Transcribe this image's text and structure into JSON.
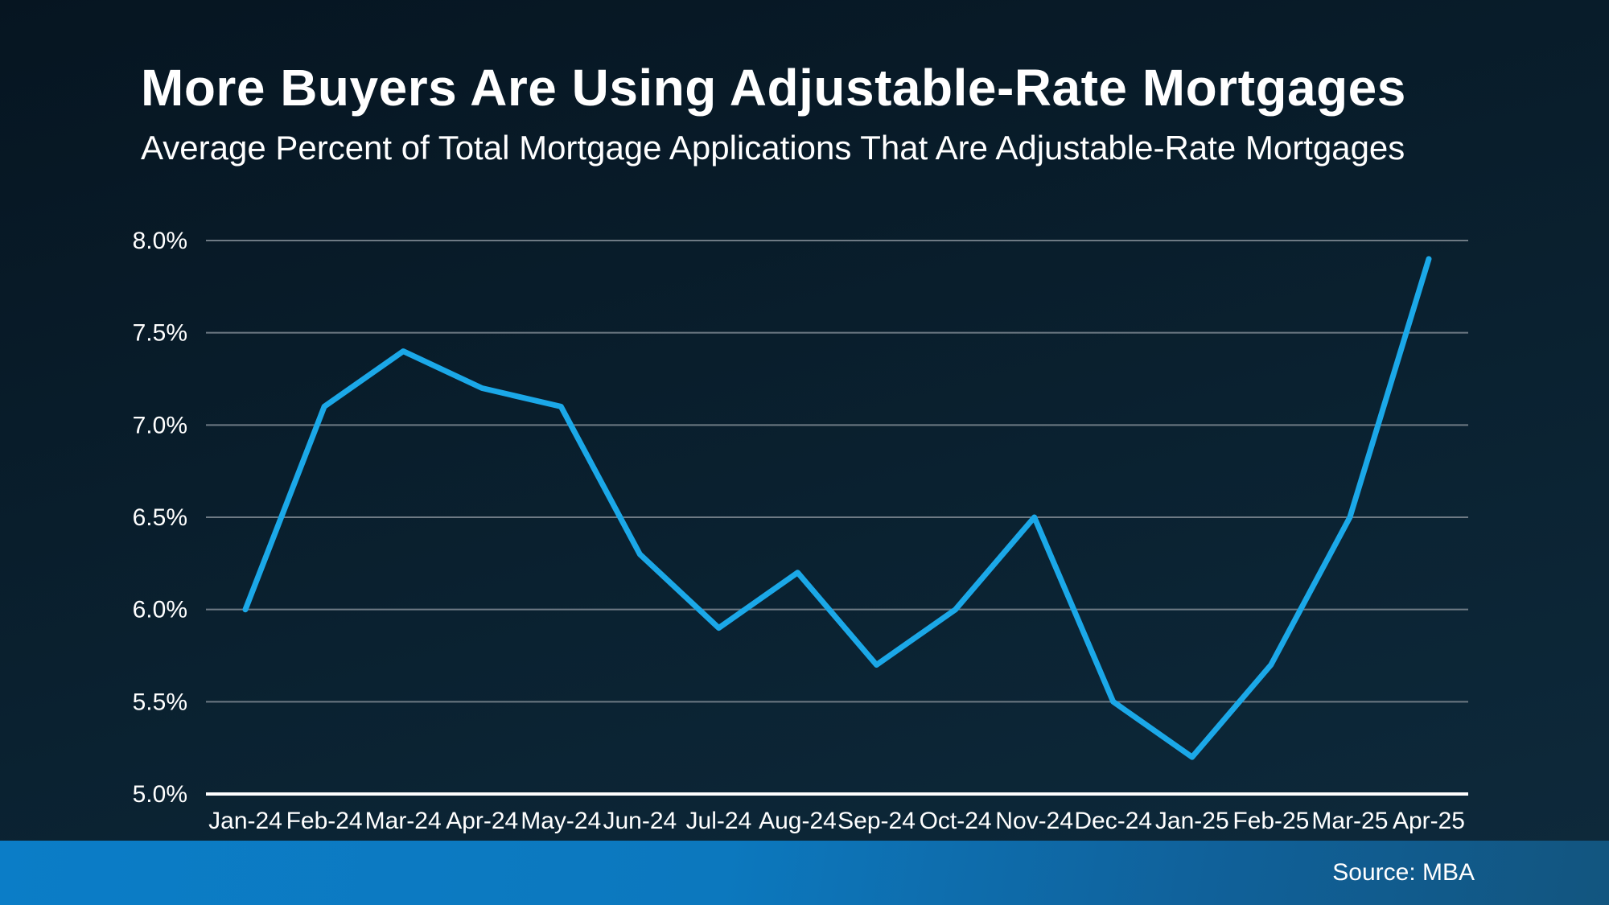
{
  "header": {
    "title": "More Buyers Are Using Adjustable-Rate Mortgages",
    "subtitle": "Average Percent of Total Mortgage Applications That Are Adjustable-Rate Mortgages"
  },
  "footer": {
    "source_label": "Source: MBA"
  },
  "colors": {
    "background_top": "#061521",
    "background_bottom": "#0e2a3c",
    "line": "#1ba8e8",
    "gridline": "#6e7a84",
    "axis_line": "#ffffff",
    "text": "#ffffff",
    "footer_bar_left": "#0b7dc7",
    "footer_bar_right": "#12557f"
  },
  "chart_data": {
    "type": "line",
    "title": "More Buyers Are Using Adjustable-Rate Mortgages",
    "subtitle": "Average Percent of Total Mortgage Applications That Are Adjustable-Rate Mortgages",
    "categories": [
      "Jan-24",
      "Feb-24",
      "Mar-24",
      "Apr-24",
      "May-24",
      "Jun-24",
      "Jul-24",
      "Aug-24",
      "Sep-24",
      "Oct-24",
      "Nov-24",
      "Dec-24",
      "Jan-25",
      "Feb-25",
      "Mar-25",
      "Apr-25"
    ],
    "values": [
      6.0,
      7.1,
      7.4,
      7.2,
      7.1,
      6.3,
      5.9,
      6.2,
      5.7,
      6.0,
      6.5,
      5.5,
      5.2,
      5.7,
      6.5,
      7.9
    ],
    "xlabel": "",
    "ylabel": "",
    "ylim": [
      5.0,
      8.0
    ],
    "ytick_step": 0.5,
    "ytick_labels": [
      "5.0%",
      "5.5%",
      "6.0%",
      "6.5%",
      "7.0%",
      "7.5%",
      "8.0%"
    ],
    "grid": "horizontal",
    "legend_position": "none",
    "source": "MBA"
  }
}
